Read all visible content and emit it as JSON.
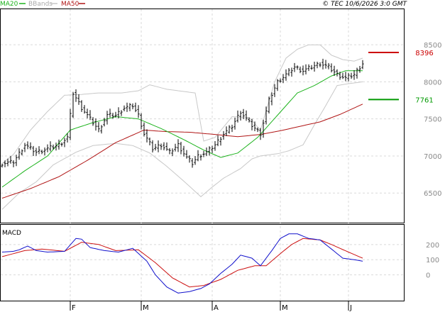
{
  "legend": [
    {
      "label": "MA20",
      "color": "#1db31d"
    },
    {
      "label": "BBands",
      "color": "#c8c8c8"
    },
    {
      "label": "MA50",
      "color": "#b01515"
    }
  ],
  "copyright": "© TEC 10/6/2026 3:0 GMT",
  "macd_label": "MACD",
  "markers": [
    {
      "label": "8396",
      "value": 8396,
      "color": "#cc0000"
    },
    {
      "label": "7761",
      "value": 7761,
      "color": "#009900"
    }
  ],
  "chart_data": [
    {
      "type": "line",
      "panel": "price",
      "y_ticks": [
        6500,
        7000,
        7500,
        8000,
        8500
      ],
      "y_tick_labels": [
        "6500",
        "7000",
        "7500",
        "8000",
        "8500"
      ],
      "ylim": [
        6100,
        8980
      ],
      "x_months": [
        "F",
        "M",
        "A",
        "M",
        "J"
      ],
      "x_month_index": [
        24,
        49,
        74,
        98,
        122
      ],
      "n_bars": 128,
      "ohlc_anchors": [
        [
          0,
          6900
        ],
        [
          4,
          6920
        ],
        [
          8,
          7150
        ],
        [
          12,
          7050
        ],
        [
          16,
          7100
        ],
        [
          20,
          7150
        ],
        [
          23,
          7250
        ],
        [
          25,
          7850
        ],
        [
          28,
          7650
        ],
        [
          31,
          7500
        ],
        [
          34,
          7350
        ],
        [
          37,
          7550
        ],
        [
          40,
          7550
        ],
        [
          43,
          7650
        ],
        [
          46,
          7680
        ],
        [
          48,
          7550
        ],
        [
          50,
          7300
        ],
        [
          53,
          7100
        ],
        [
          56,
          7150
        ],
        [
          59,
          7050
        ],
        [
          62,
          7150
        ],
        [
          65,
          6980
        ],
        [
          67,
          6900
        ],
        [
          69,
          7000
        ],
        [
          72,
          7050
        ],
        [
          75,
          7150
        ],
        [
          78,
          7300
        ],
        [
          81,
          7400
        ],
        [
          84,
          7600
        ],
        [
          87,
          7450
        ],
        [
          91,
          7300
        ],
        [
          94,
          7750
        ],
        [
          97,
          8000
        ],
        [
          100,
          8100
        ],
        [
          103,
          8200
        ],
        [
          106,
          8150
        ],
        [
          109,
          8200
        ],
        [
          112,
          8250
        ],
        [
          115,
          8200
        ],
        [
          118,
          8100
        ],
        [
          121,
          8050
        ],
        [
          124,
          8100
        ],
        [
          127,
          8250
        ]
      ],
      "ma20_anchors": [
        [
          0,
          6580
        ],
        [
          8,
          6800
        ],
        [
          16,
          7000
        ],
        [
          24,
          7350
        ],
        [
          32,
          7450
        ],
        [
          40,
          7530
        ],
        [
          48,
          7500
        ],
        [
          56,
          7370
        ],
        [
          64,
          7220
        ],
        [
          71,
          7080
        ],
        [
          77,
          6980
        ],
        [
          83,
          7040
        ],
        [
          90,
          7250
        ],
        [
          97,
          7550
        ],
        [
          104,
          7850
        ],
        [
          110,
          7950
        ],
        [
          116,
          8080
        ],
        [
          121,
          8150
        ],
        [
          127,
          8150
        ]
      ],
      "ma50_anchors": [
        [
          0,
          6430
        ],
        [
          10,
          6560
        ],
        [
          20,
          6720
        ],
        [
          30,
          6940
        ],
        [
          40,
          7180
        ],
        [
          50,
          7350
        ],
        [
          57,
          7330
        ],
        [
          66,
          7320
        ],
        [
          75,
          7290
        ],
        [
          83,
          7260
        ],
        [
          91,
          7290
        ],
        [
          98,
          7340
        ],
        [
          105,
          7400
        ],
        [
          112,
          7460
        ],
        [
          119,
          7560
        ],
        [
          127,
          7700
        ]
      ],
      "bb_upper_anchors": [
        [
          0,
          6900
        ],
        [
          4,
          7020
        ],
        [
          10,
          7350
        ],
        [
          16,
          7600
        ],
        [
          22,
          7820
        ],
        [
          28,
          7830
        ],
        [
          34,
          7850
        ],
        [
          42,
          7850
        ],
        [
          48,
          7880
        ],
        [
          52,
          7960
        ],
        [
          58,
          7900
        ],
        [
          64,
          7870
        ],
        [
          68,
          7850
        ],
        [
          71,
          7200
        ],
        [
          75,
          7250
        ],
        [
          81,
          7530
        ],
        [
          87,
          7520
        ],
        [
          91,
          7350
        ],
        [
          96,
          8000
        ],
        [
          100,
          8320
        ],
        [
          104,
          8440
        ],
        [
          108,
          8500
        ],
        [
          112,
          8500
        ],
        [
          116,
          8360
        ],
        [
          120,
          8300
        ],
        [
          124,
          8280
        ],
        [
          127,
          8320
        ]
      ],
      "bb_lower_anchors": [
        [
          0,
          6280
        ],
        [
          6,
          6500
        ],
        [
          12,
          6650
        ],
        [
          18,
          6880
        ],
        [
          26,
          7050
        ],
        [
          32,
          7140
        ],
        [
          40,
          7170
        ],
        [
          46,
          7140
        ],
        [
          52,
          7040
        ],
        [
          58,
          6860
        ],
        [
          64,
          6660
        ],
        [
          70,
          6450
        ],
        [
          74,
          6580
        ],
        [
          78,
          6700
        ],
        [
          84,
          6830
        ],
        [
          88,
          6960
        ],
        [
          91,
          7000
        ],
        [
          97,
          7030
        ],
        [
          101,
          7070
        ],
        [
          106,
          7150
        ],
        [
          110,
          7420
        ],
        [
          114,
          7680
        ],
        [
          118,
          7950
        ],
        [
          121,
          7970
        ],
        [
          127,
          8000
        ]
      ]
    },
    {
      "type": "line",
      "panel": "macd",
      "y_ticks": [
        0,
        100,
        200
      ],
      "y_tick_labels": [
        "0",
        "100",
        "200"
      ],
      "ylim": [
        -170,
        330
      ],
      "macd_anchors": [
        [
          0,
          150
        ],
        [
          4,
          155
        ],
        [
          6,
          165
        ],
        [
          9,
          190
        ],
        [
          12,
          160
        ],
        [
          16,
          150
        ],
        [
          22,
          155
        ],
        [
          26,
          240
        ],
        [
          28,
          235
        ],
        [
          31,
          180
        ],
        [
          36,
          160
        ],
        [
          41,
          150
        ],
        [
          46,
          175
        ],
        [
          51,
          90
        ],
        [
          54,
          0
        ],
        [
          58,
          -80
        ],
        [
          62,
          -120
        ],
        [
          66,
          -110
        ],
        [
          70,
          -90
        ],
        [
          73,
          -60
        ],
        [
          77,
          10
        ],
        [
          81,
          70
        ],
        [
          84,
          130
        ],
        [
          88,
          110
        ],
        [
          91,
          60
        ],
        [
          95,
          160
        ],
        [
          98,
          240
        ],
        [
          101,
          270
        ],
        [
          104,
          270
        ],
        [
          108,
          240
        ],
        [
          112,
          230
        ],
        [
          116,
          170
        ],
        [
          120,
          110
        ],
        [
          124,
          100
        ],
        [
          127,
          90
        ]
      ],
      "signal_anchors": [
        [
          0,
          120
        ],
        [
          8,
          160
        ],
        [
          14,
          170
        ],
        [
          22,
          155
        ],
        [
          28,
          215
        ],
        [
          34,
          200
        ],
        [
          40,
          160
        ],
        [
          48,
          165
        ],
        [
          54,
          80
        ],
        [
          60,
          -20
        ],
        [
          66,
          -80
        ],
        [
          71,
          -70
        ],
        [
          77,
          -30
        ],
        [
          83,
          30
        ],
        [
          89,
          60
        ],
        [
          93,
          60
        ],
        [
          98,
          140
        ],
        [
          102,
          200
        ],
        [
          106,
          240
        ],
        [
          112,
          230
        ],
        [
          116,
          200
        ],
        [
          122,
          150
        ],
        [
          127,
          110
        ]
      ]
    }
  ]
}
